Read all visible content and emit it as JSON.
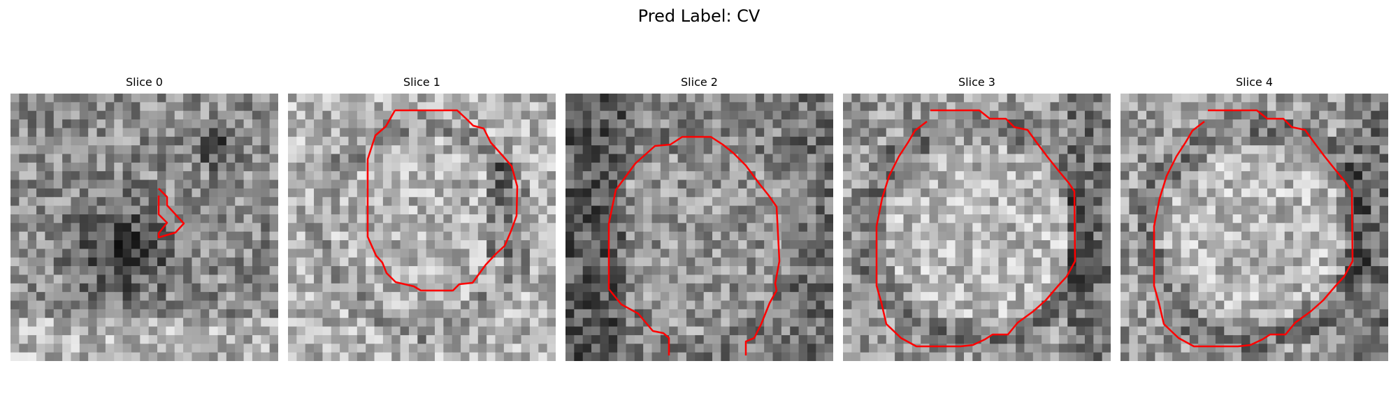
{
  "title": "Pred Label: CV",
  "accent_color": "#ff0000",
  "slices": [
    {
      "label": "Slice 0"
    },
    {
      "label": "Slice 1"
    },
    {
      "label": "Slice 2"
    },
    {
      "label": "Slice 3"
    },
    {
      "label": "Slice 4"
    }
  ]
}
